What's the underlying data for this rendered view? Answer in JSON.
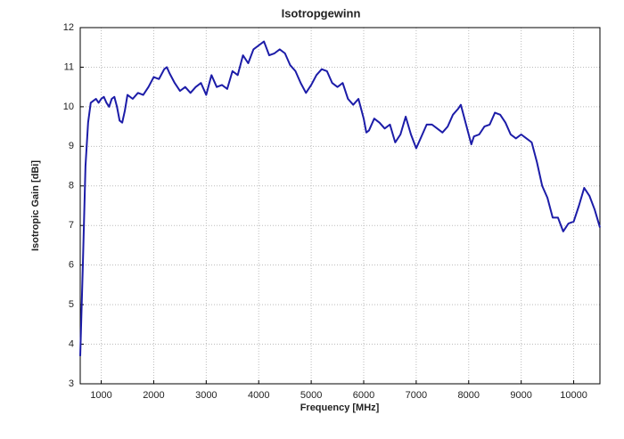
{
  "chart_data": {
    "type": "line",
    "title": "Isotropgewinn",
    "xlabel": "Frequency [MHz]",
    "ylabel": "Isotropic Gain [dBi]",
    "x": [
      600,
      650,
      700,
      750,
      800,
      850,
      900,
      950,
      1000,
      1050,
      1100,
      1150,
      1200,
      1250,
      1300,
      1350,
      1400,
      1450,
      1500,
      1600,
      1700,
      1800,
      1900,
      2000,
      2100,
      2200,
      2250,
      2300,
      2400,
      2500,
      2600,
      2700,
      2800,
      2900,
      3000,
      3100,
      3200,
      3300,
      3400,
      3500,
      3600,
      3700,
      3800,
      3900,
      4000,
      4100,
      4200,
      4300,
      4400,
      4500,
      4600,
      4700,
      4800,
      4900,
      5000,
      5100,
      5200,
      5300,
      5400,
      5500,
      5600,
      5700,
      5800,
      5900,
      6000,
      6050,
      6100,
      6200,
      6300,
      6400,
      6500,
      6600,
      6700,
      6800,
      6900,
      7000,
      7100,
      7200,
      7300,
      7400,
      7500,
      7600,
      7700,
      7800,
      7850,
      7900,
      8000,
      8050,
      8100,
      8200,
      8300,
      8400,
      8500,
      8600,
      8700,
      8800,
      8900,
      9000,
      9100,
      9200,
      9300,
      9400,
      9500,
      9600,
      9700,
      9800,
      9900,
      10000,
      10100,
      10200,
      10300,
      10400,
      10500
    ],
    "series": [
      {
        "name": "Isotropic Gain",
        "color": "#1c1ca8",
        "values": [
          3.7,
          6,
          8.5,
          9.6,
          10.1,
          10.15,
          10.2,
          10.1,
          10.2,
          10.25,
          10.1,
          10.0,
          10.2,
          10.25,
          10.0,
          9.65,
          9.6,
          9.9,
          10.3,
          10.2,
          10.35,
          10.3,
          10.5,
          10.75,
          10.7,
          10.95,
          11.0,
          10.85,
          10.6,
          10.4,
          10.5,
          10.35,
          10.5,
          10.6,
          10.3,
          10.8,
          10.5,
          10.55,
          10.45,
          10.9,
          10.8,
          11.3,
          11.1,
          11.45,
          11.55,
          11.65,
          11.3,
          11.35,
          11.45,
          11.35,
          11.05,
          10.9,
          10.6,
          10.35,
          10.55,
          10.8,
          10.95,
          10.9,
          10.6,
          10.5,
          10.6,
          10.2,
          10.05,
          10.2,
          9.7,
          9.35,
          9.4,
          9.7,
          9.6,
          9.45,
          9.55,
          9.1,
          9.3,
          9.75,
          9.3,
          8.95,
          9.25,
          9.55,
          9.55,
          9.45,
          9.35,
          9.5,
          9.8,
          9.95,
          10.05,
          9.8,
          9.3,
          9.05,
          9.25,
          9.3,
          9.5,
          9.55,
          9.85,
          9.8,
          9.6,
          9.3,
          9.2,
          9.3,
          9.2,
          9.1,
          8.6,
          8.0,
          7.7,
          7.2,
          7.2,
          6.85,
          7.05,
          7.1,
          7.5,
          7.95,
          7.75,
          7.4,
          6.95
        ]
      }
    ],
    "xlim": [
      600,
      10500
    ],
    "xticks": [
      1000,
      2000,
      3000,
      4000,
      5000,
      6000,
      7000,
      8000,
      9000,
      10000
    ],
    "ylim": [
      3,
      12
    ],
    "yticks": [
      3,
      4,
      5,
      6,
      7,
      8,
      9,
      10,
      11,
      12
    ],
    "grid": true
  }
}
